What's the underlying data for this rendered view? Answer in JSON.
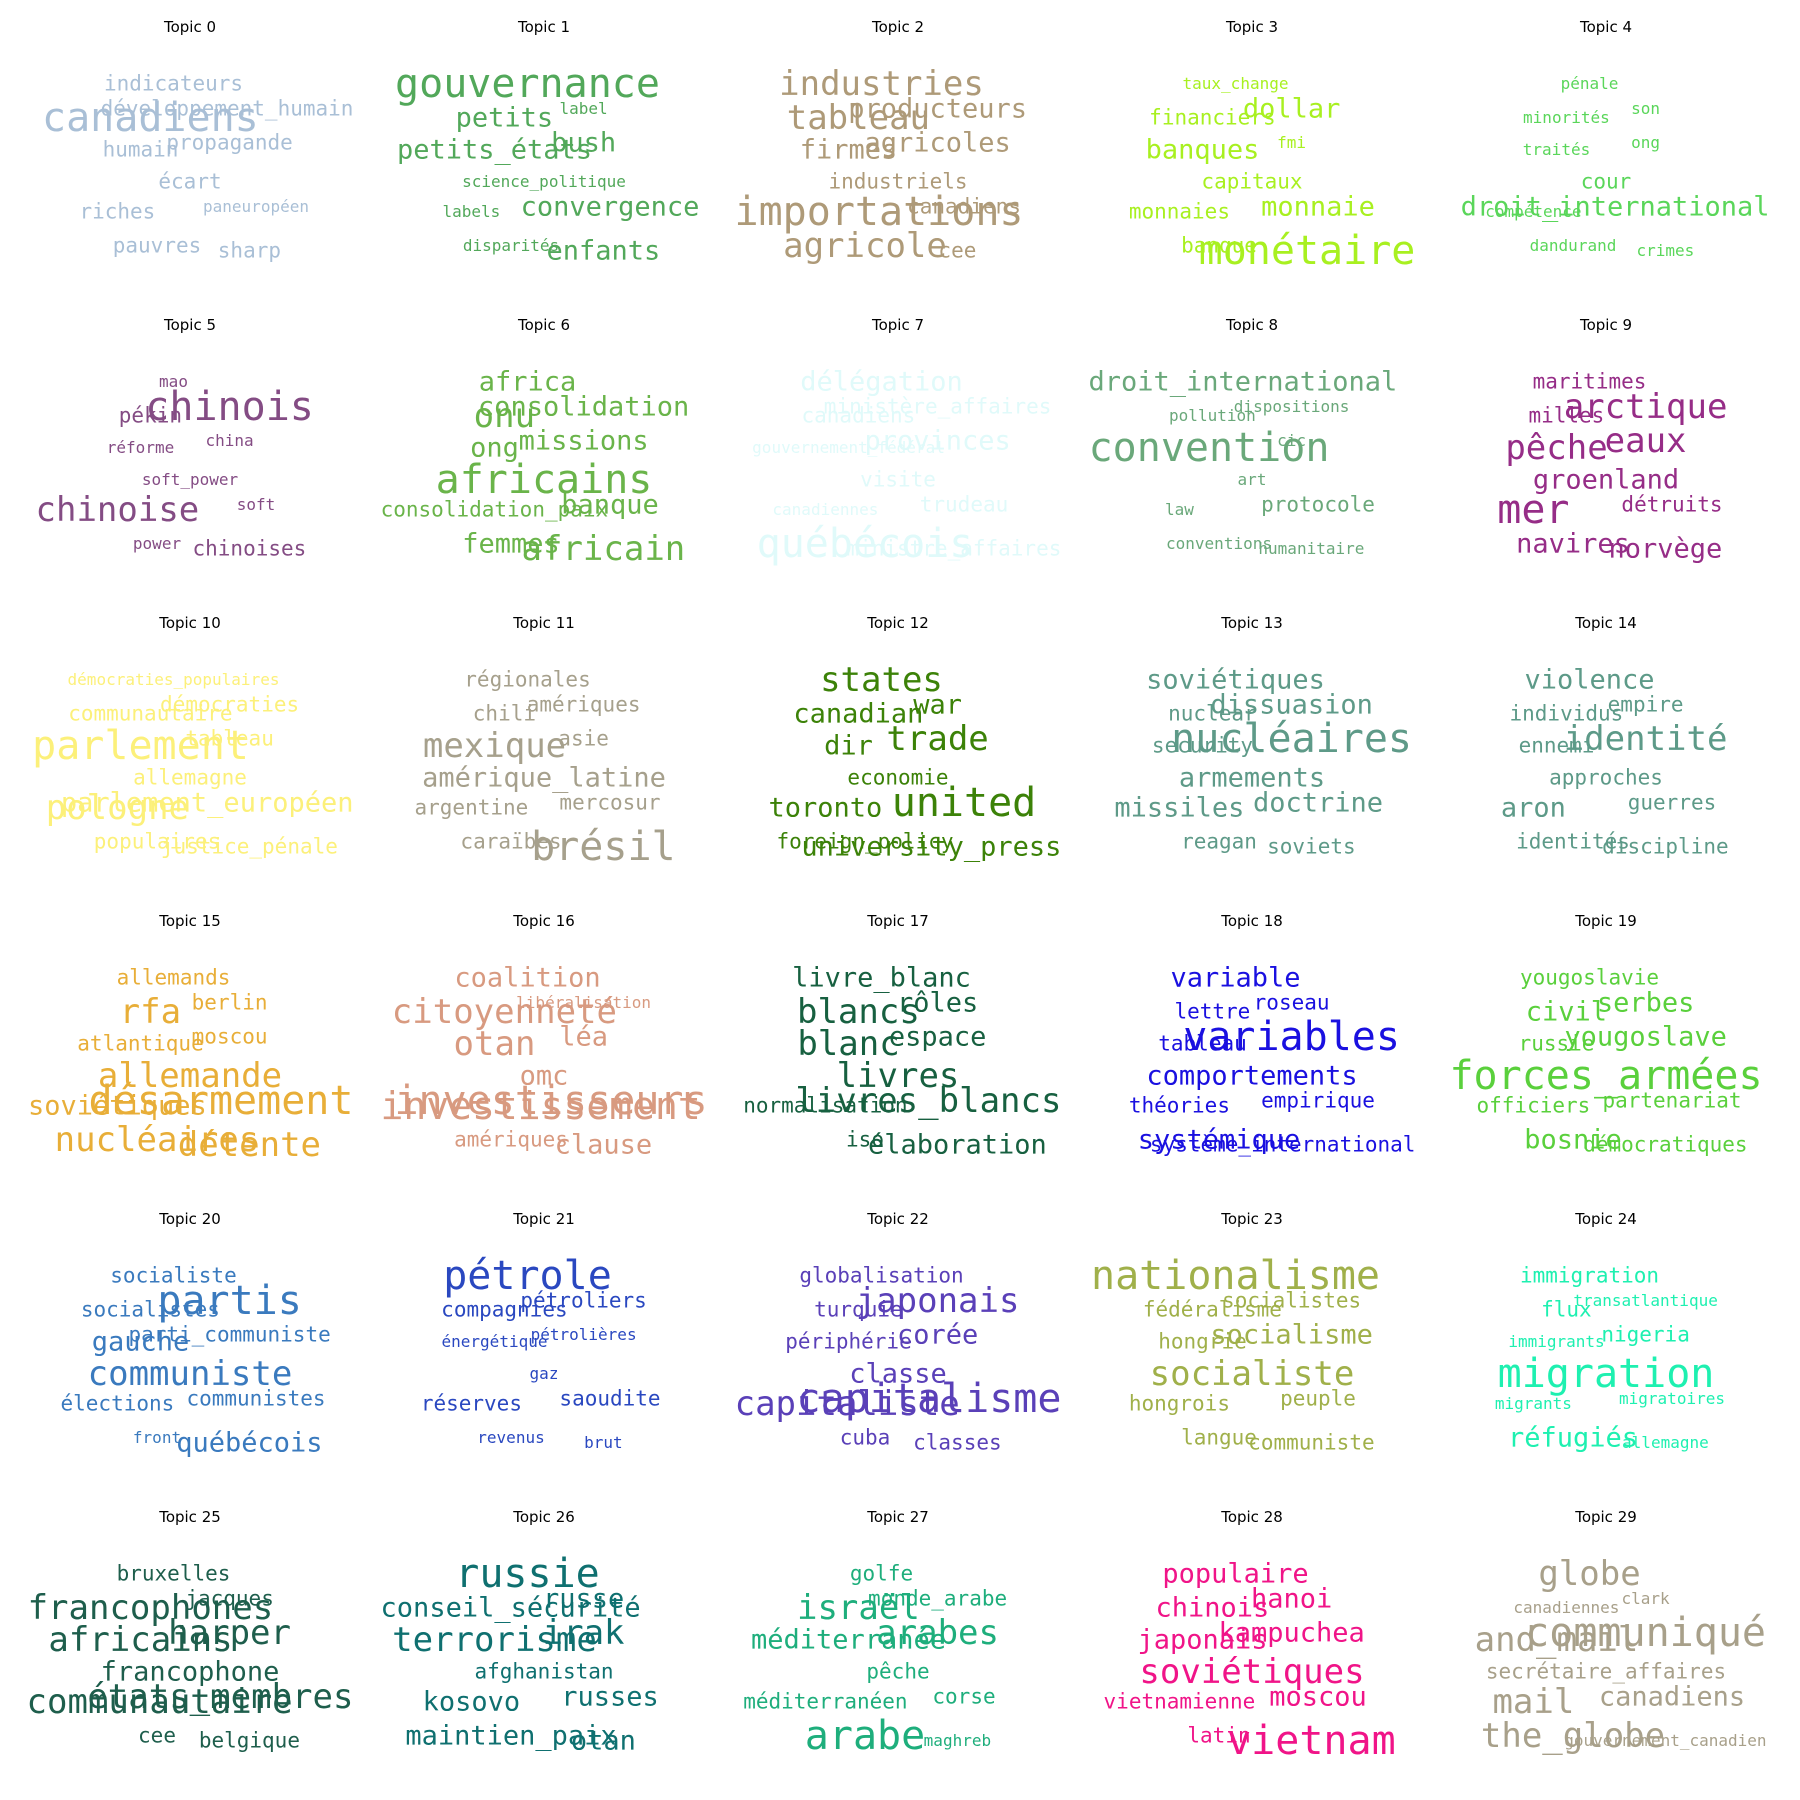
{
  "topics": [
    {
      "title": "Topic 0",
      "color": "#a9bfd6",
      "words": [
        [
          "indicateurs",
          2
        ],
        [
          "canadiens",
          5
        ],
        [
          "développement_humain",
          2
        ],
        [
          "humain",
          2
        ],
        [
          "propagande",
          2
        ],
        [
          "écart",
          2
        ],
        [
          "riches",
          2
        ],
        [
          "paneuropéen",
          1
        ],
        [
          "pauvres",
          2
        ],
        [
          "sharp",
          2
        ]
      ]
    },
    {
      "title": "Topic 1",
      "color": "#52a85a",
      "words": [
        [
          "gouvernance",
          5
        ],
        [
          "petits",
          3
        ],
        [
          "label",
          1
        ],
        [
          "petits_états",
          3
        ],
        [
          "bush",
          3
        ],
        [
          "science_politique",
          1
        ],
        [
          "labels",
          1
        ],
        [
          "convergence",
          3
        ],
        [
          "disparités",
          1
        ],
        [
          "enfants",
          3
        ]
      ]
    },
    {
      "title": "Topic 2",
      "color": "#ae9a78",
      "words": [
        [
          "industries",
          4
        ],
        [
          "tableau",
          4
        ],
        [
          "producteurs",
          3
        ],
        [
          "firmes",
          3
        ],
        [
          "agricoles",
          3
        ],
        [
          "industriels",
          2
        ],
        [
          "importations",
          5
        ],
        [
          "canadiens",
          2
        ],
        [
          "agricole",
          4
        ],
        [
          "cee",
          2
        ]
      ]
    },
    {
      "title": "Topic 3",
      "color": "#a8f020",
      "words": [
        [
          "taux_change",
          1
        ],
        [
          "financiers",
          2
        ],
        [
          "dollar",
          3
        ],
        [
          "banques",
          3
        ],
        [
          "fmi",
          1
        ],
        [
          "capitaux",
          2
        ],
        [
          "monnaies",
          2
        ],
        [
          "monnaie",
          3
        ],
        [
          "banque",
          2
        ],
        [
          "monétaire",
          5
        ]
      ]
    },
    {
      "title": "Topic 4",
      "color": "#5ad65a",
      "words": [
        [
          "pénale",
          1
        ],
        [
          "minorités",
          1
        ],
        [
          "son",
          1
        ],
        [
          "traités",
          1
        ],
        [
          "ong",
          1
        ],
        [
          "cour",
          2
        ],
        [
          "compétence",
          1
        ],
        [
          "droit_international",
          3
        ],
        [
          "dandurand",
          1
        ],
        [
          "crimes",
          1
        ]
      ]
    },
    {
      "title": "Topic 5",
      "color": "#844c84",
      "words": [
        [
          "mao",
          1
        ],
        [
          "pékin",
          2
        ],
        [
          "chinois",
          5
        ],
        [
          "réforme",
          1
        ],
        [
          "china",
          1
        ],
        [
          "soft_power",
          1
        ],
        [
          "chinoise",
          4
        ],
        [
          "soft",
          1
        ],
        [
          "power",
          1
        ],
        [
          "chinoises",
          2
        ]
      ]
    },
    {
      "title": "Topic 6",
      "color": "#6ab44a",
      "words": [
        [
          "africa",
          3
        ],
        [
          "onu",
          4
        ],
        [
          "consolidation",
          3
        ],
        [
          "ong",
          3
        ],
        [
          "missions",
          3
        ],
        [
          "africains",
          5
        ],
        [
          "consolidation_paix",
          2
        ],
        [
          "banque",
          3
        ],
        [
          "femmes",
          3
        ],
        [
          "africain",
          4
        ]
      ]
    },
    {
      "title": "Topic 7",
      "color": "#e0fafa",
      "words": [
        [
          "délégation",
          3
        ],
        [
          "canadiens",
          2
        ],
        [
          "ministère_affaires",
          2
        ],
        [
          "gouvernement_fédéral",
          1
        ],
        [
          "provinces",
          3
        ],
        [
          "visite",
          2
        ],
        [
          "canadiennes",
          1
        ],
        [
          "trudeau",
          2
        ],
        [
          "québécois",
          5
        ],
        [
          "ministre_affaires",
          2
        ]
      ]
    },
    {
      "title": "Topic 8",
      "color": "#6aa87a",
      "words": [
        [
          "droit_international",
          3
        ],
        [
          "pollution",
          1
        ],
        [
          "dispositions",
          1
        ],
        [
          "convention",
          5
        ],
        [
          "cic",
          1
        ],
        [
          "art",
          1
        ],
        [
          "law",
          1
        ],
        [
          "protocole",
          2
        ],
        [
          "conventions",
          1
        ],
        [
          "humanitaire",
          1
        ]
      ]
    },
    {
      "title": "Topic 9",
      "color": "#962d87",
      "words": [
        [
          "maritimes",
          2
        ],
        [
          "milles",
          2
        ],
        [
          "arctique",
          4
        ],
        [
          "pêche",
          4
        ],
        [
          "eaux",
          4
        ],
        [
          "groenland",
          3
        ],
        [
          "mer",
          5
        ],
        [
          "détruits",
          2
        ],
        [
          "navires",
          3
        ],
        [
          "norvège",
          3
        ]
      ]
    },
    {
      "title": "Topic 10",
      "color": "#fcf07a",
      "words": [
        [
          "démocraties_populaires",
          1
        ],
        [
          "communautaire",
          2
        ],
        [
          "démocraties",
          2
        ],
        [
          "parlement",
          5
        ],
        [
          "tableau",
          2
        ],
        [
          "allemagne",
          2
        ],
        [
          "pologne",
          4
        ],
        [
          "parlement_européen",
          3
        ],
        [
          "populaires",
          2
        ],
        [
          "justice_pénale",
          2
        ]
      ]
    },
    {
      "title": "Topic 11",
      "color": "#a6a08c",
      "words": [
        [
          "régionales",
          2
        ],
        [
          "chili",
          2
        ],
        [
          "amériques",
          2
        ],
        [
          "mexique",
          4
        ],
        [
          "asie",
          2
        ],
        [
          "amérique_latine",
          3
        ],
        [
          "argentine",
          2
        ],
        [
          "mercosur",
          2
        ],
        [
          "caraïbes",
          2
        ],
        [
          "brésil",
          5
        ]
      ]
    },
    {
      "title": "Topic 12",
      "color": "#3c8208",
      "words": [
        [
          "states",
          4
        ],
        [
          "canadian",
          3
        ],
        [
          "war",
          3
        ],
        [
          "dir",
          3
        ],
        [
          "trade",
          4
        ],
        [
          "economie",
          2
        ],
        [
          "toronto",
          3
        ],
        [
          "united",
          5
        ],
        [
          "foreign_policy",
          2
        ],
        [
          "university_press",
          3
        ]
      ]
    },
    {
      "title": "Topic 13",
      "color": "#5e9a88",
      "words": [
        [
          "soviétiques",
          3
        ],
        [
          "nuclear",
          2
        ],
        [
          "dissuasion",
          3
        ],
        [
          "security",
          2
        ],
        [
          "nucléaires",
          5
        ],
        [
          "armements",
          3
        ],
        [
          "missiles",
          3
        ],
        [
          "doctrine",
          3
        ],
        [
          "reagan",
          2
        ],
        [
          "soviets",
          2
        ]
      ]
    },
    {
      "title": "Topic 14",
      "color": "#5d9a88",
      "words": [
        [
          "violence",
          3
        ],
        [
          "individus",
          2
        ],
        [
          "empire",
          2
        ],
        [
          "ennemi",
          2
        ],
        [
          "identité",
          4
        ],
        [
          "approches",
          2
        ],
        [
          "aron",
          3
        ],
        [
          "guerres",
          2
        ],
        [
          "identités",
          2
        ],
        [
          "discipline",
          2
        ]
      ]
    },
    {
      "title": "Topic 15",
      "color": "#e8ae38",
      "words": [
        [
          "allemands",
          2
        ],
        [
          "rfa",
          4
        ],
        [
          "berlin",
          2
        ],
        [
          "atlantique",
          2
        ],
        [
          "moscou",
          2
        ],
        [
          "allemande",
          4
        ],
        [
          "soviétiques",
          3
        ],
        [
          "désarmement",
          5
        ],
        [
          "nucléaires",
          4
        ],
        [
          "détente",
          4
        ]
      ]
    },
    {
      "title": "Topic 16",
      "color": "#d89a80",
      "words": [
        [
          "coalition",
          3
        ],
        [
          "citoyenneté",
          4
        ],
        [
          "libéralisation",
          1
        ],
        [
          "otan",
          4
        ],
        [
          "léa",
          3
        ],
        [
          "omc",
          3
        ],
        [
          "investissement",
          5
        ],
        [
          "investisseurs",
          5
        ],
        [
          "amériques",
          2
        ],
        [
          "clause",
          3
        ]
      ]
    },
    {
      "title": "Topic 17",
      "color": "#176040",
      "words": [
        [
          "livre_blanc",
          3
        ],
        [
          "blancs",
          4
        ],
        [
          "rôles",
          3
        ],
        [
          "blanc",
          4
        ],
        [
          "espace",
          3
        ],
        [
          "livres",
          4
        ],
        [
          "normalisation",
          2
        ],
        [
          "livres_blancs",
          4
        ],
        [
          "iso",
          2
        ],
        [
          "élaboration",
          3
        ]
      ]
    },
    {
      "title": "Topic 18",
      "color": "#1a10e0",
      "words": [
        [
          "variable",
          3
        ],
        [
          "lettre",
          2
        ],
        [
          "roseau",
          2
        ],
        [
          "tableau",
          2
        ],
        [
          "variables",
          5
        ],
        [
          "comportements",
          3
        ],
        [
          "théories",
          2
        ],
        [
          "empirique",
          2
        ],
        [
          "systémique",
          3
        ],
        [
          "système_international",
          2
        ]
      ]
    },
    {
      "title": "Topic 19",
      "color": "#5ad03c",
      "words": [
        [
          "yougoslavie",
          2
        ],
        [
          "civil",
          3
        ],
        [
          "serbes",
          3
        ],
        [
          "russie",
          2
        ],
        [
          "yougoslave",
          3
        ],
        [
          "forces_armées",
          5
        ],
        [
          "officiers",
          2
        ],
        [
          "partenariat",
          2
        ],
        [
          "bosnie",
          3
        ],
        [
          "démocratiques",
          2
        ]
      ]
    },
    {
      "title": "Topic 20",
      "color": "#3a7abe",
      "words": [
        [
          "socialiste",
          2
        ],
        [
          "socialistes",
          2
        ],
        [
          "partis",
          5
        ],
        [
          "gauche",
          3
        ],
        [
          "parti_communiste",
          2
        ],
        [
          "communiste",
          4
        ],
        [
          "élections",
          2
        ],
        [
          "communistes",
          2
        ],
        [
          "front",
          1
        ],
        [
          "québécois",
          3
        ]
      ]
    },
    {
      "title": "Topic 21",
      "color": "#2a48c0",
      "words": [
        [
          "pétrole",
          5
        ],
        [
          "compagnies",
          2
        ],
        [
          "pétroliers",
          2
        ],
        [
          "énergétique",
          1
        ],
        [
          "pétrolières",
          1
        ],
        [
          "gaz",
          1
        ],
        [
          "réserves",
          2
        ],
        [
          "saoudite",
          2
        ],
        [
          "revenus",
          1
        ],
        [
          "brut",
          1
        ]
      ]
    },
    {
      "title": "Topic 22",
      "color": "#5a40b8",
      "words": [
        [
          "globalisation",
          2
        ],
        [
          "turquie",
          2
        ],
        [
          "japonais",
          4
        ],
        [
          "périphérie",
          2
        ],
        [
          "corée",
          3
        ],
        [
          "classe",
          3
        ],
        [
          "capitaliste",
          4
        ],
        [
          "capitalisme",
          5
        ],
        [
          "cuba",
          2
        ],
        [
          "classes",
          2
        ]
      ]
    },
    {
      "title": "Topic 23",
      "color": "#a0b04a",
      "words": [
        [
          "nationalisme",
          5
        ],
        [
          "fédéralisme",
          2
        ],
        [
          "socialistes",
          2
        ],
        [
          "hongrie",
          2
        ],
        [
          "socialisme",
          3
        ],
        [
          "socialiste",
          4
        ],
        [
          "hongrois",
          2
        ],
        [
          "peuple",
          2
        ],
        [
          "langue",
          2
        ],
        [
          "communiste",
          2
        ]
      ]
    },
    {
      "title": "Topic 24",
      "color": "#1ef0b0",
      "words": [
        [
          "immigration",
          2
        ],
        [
          "flux",
          2
        ],
        [
          "transatlantique",
          1
        ],
        [
          "immigrants",
          1
        ],
        [
          "nigeria",
          2
        ],
        [
          "migration",
          5
        ],
        [
          "migrants",
          1
        ],
        [
          "migratoires",
          1
        ],
        [
          "réfugiés",
          3
        ],
        [
          "allemagne",
          1
        ]
      ]
    },
    {
      "title": "Topic 25",
      "color": "#1e5e4c",
      "words": [
        [
          "bruxelles",
          2
        ],
        [
          "francophones",
          4
        ],
        [
          "jacques",
          2
        ],
        [
          "africains",
          4
        ],
        [
          "harper",
          4
        ],
        [
          "francophone",
          3
        ],
        [
          "communautaire",
          4
        ],
        [
          "états_membres",
          4
        ],
        [
          "cee",
          2
        ],
        [
          "belgique",
          2
        ]
      ]
    },
    {
      "title": "Topic 26",
      "color": "#0f7070",
      "words": [
        [
          "russie",
          5
        ],
        [
          "conseil_sécurité",
          3
        ],
        [
          "russe",
          3
        ],
        [
          "terrorisme",
          4
        ],
        [
          "irak",
          4
        ],
        [
          "afghanistan",
          2
        ],
        [
          "kosovo",
          3
        ],
        [
          "russes",
          3
        ],
        [
          "maintien_paix",
          3
        ],
        [
          "otan",
          3
        ]
      ]
    },
    {
      "title": "Topic 27",
      "color": "#1eae7c",
      "words": [
        [
          "golfe",
          2
        ],
        [
          "israël",
          4
        ],
        [
          "monde_arabe",
          2
        ],
        [
          "méditerranée",
          3
        ],
        [
          "arabes",
          4
        ],
        [
          "pêche",
          2
        ],
        [
          "méditerranéen",
          2
        ],
        [
          "corse",
          2
        ],
        [
          "arabe",
          5
        ],
        [
          "maghreb",
          1
        ]
      ]
    },
    {
      "title": "Topic 28",
      "color": "#f01488",
      "words": [
        [
          "populaire",
          3
        ],
        [
          "chinois",
          3
        ],
        [
          "hanoi",
          3
        ],
        [
          "japonais",
          3
        ],
        [
          "kampuchea",
          3
        ],
        [
          "soviétiques",
          4
        ],
        [
          "vietnamienne",
          2
        ],
        [
          "moscou",
          3
        ],
        [
          "latin",
          2
        ],
        [
          "vietnam",
          5
        ]
      ]
    },
    {
      "title": "Topic 29",
      "color": "#a8a08a",
      "words": [
        [
          "globe",
          4
        ],
        [
          "canadiennes",
          1
        ],
        [
          "clark",
          1
        ],
        [
          "and_mail",
          4
        ],
        [
          "communiqué",
          5
        ],
        [
          "secrétaire_affaires",
          2
        ],
        [
          "mail",
          4
        ],
        [
          "canadiens",
          3
        ],
        [
          "the_globe",
          4
        ],
        [
          "gouvernement_canadien",
          1
        ]
      ]
    }
  ]
}
